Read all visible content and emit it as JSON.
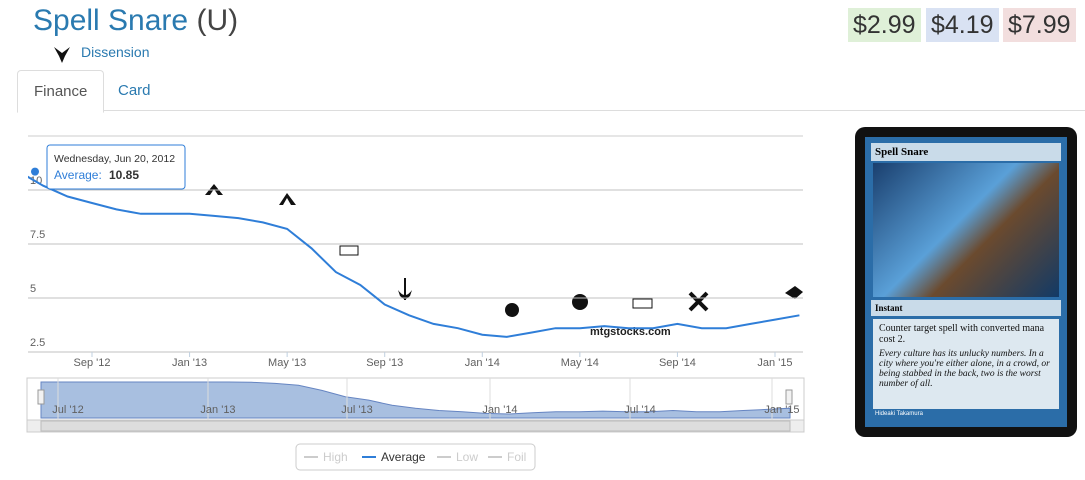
{
  "header": {
    "title": "Spell Snare",
    "rarity": "(U)",
    "set": "Dissension",
    "prices": [
      "$2.99",
      "$4.19",
      "$7.99"
    ]
  },
  "tabs": [
    "Finance",
    "Card"
  ],
  "chart_data": {
    "type": "line",
    "categories": [
      null,
      null,
      null,
      "Sep '12",
      null,
      null,
      null,
      "Jan '13",
      null,
      null,
      null,
      "May '13",
      null,
      null,
      null,
      "Sep '13",
      null,
      null,
      null,
      "Jan '14",
      null,
      null,
      null,
      "May '14",
      null,
      null,
      null,
      "Sep '14",
      null,
      null,
      null,
      "Jan '15",
      null
    ],
    "series": [
      {
        "name": "High",
        "visible": false
      },
      {
        "name": "Average",
        "color": "#2f7ed8",
        "visible": true,
        "values": [
          10.85,
          10.2,
          9.7,
          9.4,
          9.1,
          8.9,
          8.9,
          8.9,
          8.8,
          8.7,
          8.5,
          8.2,
          7.3,
          6.2,
          5.6,
          4.7,
          4.2,
          3.8,
          3.6,
          3.3,
          3.2,
          3.4,
          3.6,
          3.6,
          3.7,
          3.6,
          3.6,
          3.8,
          3.6,
          3.6,
          3.8,
          4.0,
          4.2
        ]
      },
      {
        "name": "Low",
        "visible": false
      },
      {
        "name": "Foil",
        "visible": false
      }
    ],
    "ylim": [
      2.5,
      12.5
    ],
    "yticks": [
      2.5,
      5,
      7.5,
      10
    ],
    "grid": true,
    "navigator_labels": [
      "Jul '12",
      "Jan '13",
      "Jul '13",
      "Jan '14",
      "Jul '14",
      "Jan '15"
    ],
    "tooltip": {
      "date": "Wednesday, Jun 20, 2012",
      "label": "Average:",
      "value": 10.85
    },
    "watermark": "mtgstocks.com"
  },
  "card": {
    "name": "Spell Snare",
    "type_line": "Instant",
    "rules": "Counter target spell with converted mana cost 2.",
    "flavor": "Every culture has its unlucky numbers. In a city where you're either alone, in a crowd, or being stabbed in the back, two is the worst number of all.",
    "artist": "Hideaki Takamura"
  }
}
